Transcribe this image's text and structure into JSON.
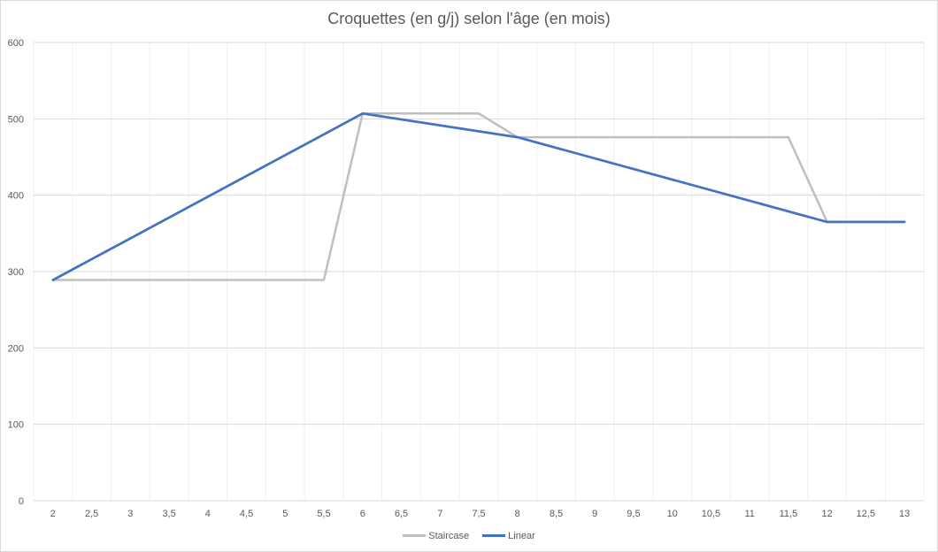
{
  "chart_data": {
    "type": "line",
    "title": "Croquettes (en g/j) selon l'âge (en mois)",
    "xlabel": "",
    "ylabel": "",
    "categories": [
      "2",
      "2,5",
      "3",
      "3,5",
      "4",
      "4,5",
      "5",
      "5,5",
      "6",
      "6,5",
      "7",
      "7,5",
      "8",
      "8,5",
      "9",
      "9,5",
      "10",
      "10,5",
      "11",
      "11,5",
      "12",
      "12,5",
      "13"
    ],
    "x": [
      2,
      2.5,
      3,
      3.5,
      4,
      4.5,
      5,
      5.5,
      6,
      6.5,
      7,
      7.5,
      8,
      8.5,
      9,
      9.5,
      10,
      10.5,
      11,
      11.5,
      12,
      12.5,
      13
    ],
    "y_ticks": [
      "0",
      "100",
      "200",
      "300",
      "400",
      "500",
      "600"
    ],
    "ylim": [
      0,
      600
    ],
    "grid": {
      "horizontal": true,
      "vertical": true
    },
    "legend_position": "bottom",
    "series": [
      {
        "name": "Staircase",
        "color": "#bfbfbf",
        "points": [
          [
            2,
            289
          ],
          [
            5.5,
            289
          ],
          [
            6,
            507
          ],
          [
            7.5,
            507
          ],
          [
            8,
            476
          ],
          [
            11.5,
            476
          ],
          [
            12,
            365
          ],
          [
            13,
            365
          ]
        ]
      },
      {
        "name": "Linear",
        "color": "#4472c4",
        "points": [
          [
            2,
            289
          ],
          [
            6,
            507
          ],
          [
            8,
            476
          ],
          [
            12,
            365
          ],
          [
            13,
            365
          ]
        ]
      }
    ]
  }
}
